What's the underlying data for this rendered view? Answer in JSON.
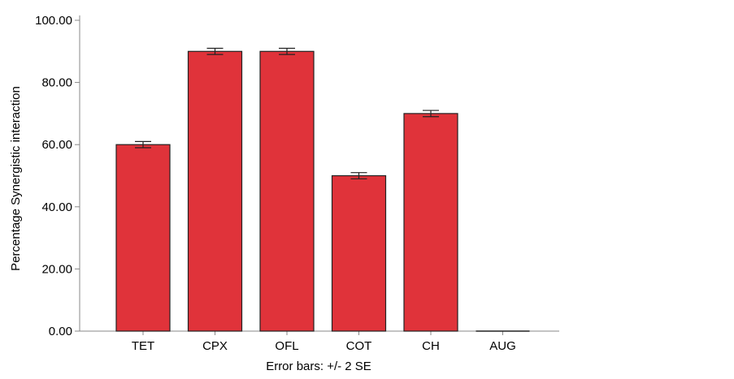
{
  "chart_data": {
    "type": "bar",
    "categories": [
      "TET",
      "CPX",
      "OFL",
      "COT",
      "CH",
      "AUG"
    ],
    "values": [
      60.0,
      90.0,
      90.0,
      50.0,
      70.0,
      0.0
    ],
    "error_bars": {
      "label": "Error bars: +/- 2 SE",
      "lower": [
        59.0,
        89.0,
        89.0,
        49.0,
        69.0,
        0.0
      ],
      "upper": [
        61.0,
        91.0,
        91.0,
        51.0,
        71.0,
        0.0
      ]
    },
    "title": "",
    "xlabel": "",
    "ylabel": "Percentage Synergistic interaction",
    "ylim": [
      0,
      100
    ],
    "yticks": [
      "0.00",
      "20.00",
      "40.00",
      "60.00",
      "80.00",
      "100.00"
    ],
    "grid": false,
    "legend": "none",
    "colors": {
      "bar_fill": "#e0333a",
      "bar_stroke": "#222222",
      "axis": "#888888",
      "error_bar": "#222222"
    }
  }
}
